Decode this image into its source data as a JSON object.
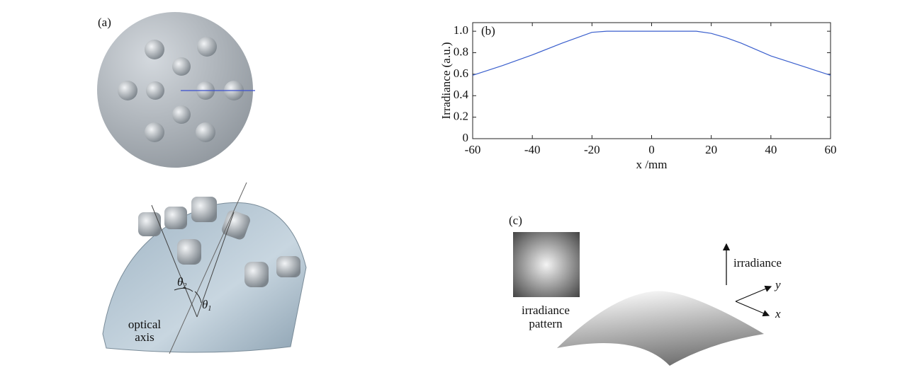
{
  "chart_data": {
    "type": "line",
    "label": "(b)",
    "x_label": "x /mm",
    "y_label": "Irradiance (a.u.)",
    "x": [
      -60,
      -50,
      -40,
      -30,
      -25,
      -20,
      -15,
      0,
      15,
      20,
      25,
      30,
      40,
      50,
      60
    ],
    "values": [
      0.59,
      0.68,
      0.78,
      0.89,
      0.94,
      0.99,
      1.0,
      1.0,
      1.0,
      0.98,
      0.94,
      0.89,
      0.77,
      0.68,
      0.59
    ],
    "color": "#3a5fcd",
    "xlim": [
      -60,
      60
    ],
    "xticks": [
      -60,
      -40,
      -20,
      0,
      20,
      40,
      60
    ],
    "ylim": [
      0,
      1.08
    ],
    "yticks": [
      0,
      0.2,
      0.4,
      0.6,
      0.8,
      {
        "value": 1,
        "label": "1.0"
      }
    ]
  },
  "panel_a": {
    "label": "(a)",
    "theta_2": {
      "symbol": "θ",
      "subscript": "2"
    },
    "theta_1": {
      "symbol": "θ",
      "subscript": "1"
    },
    "optical_axis": [
      "optical",
      "axis"
    ]
  },
  "panel_c": {
    "label": "(c)",
    "pattern_caption": [
      "irradiance",
      "pattern"
    ],
    "irradiance_arrow": "irradiance",
    "axis_y": "y",
    "axis_x": "x"
  }
}
